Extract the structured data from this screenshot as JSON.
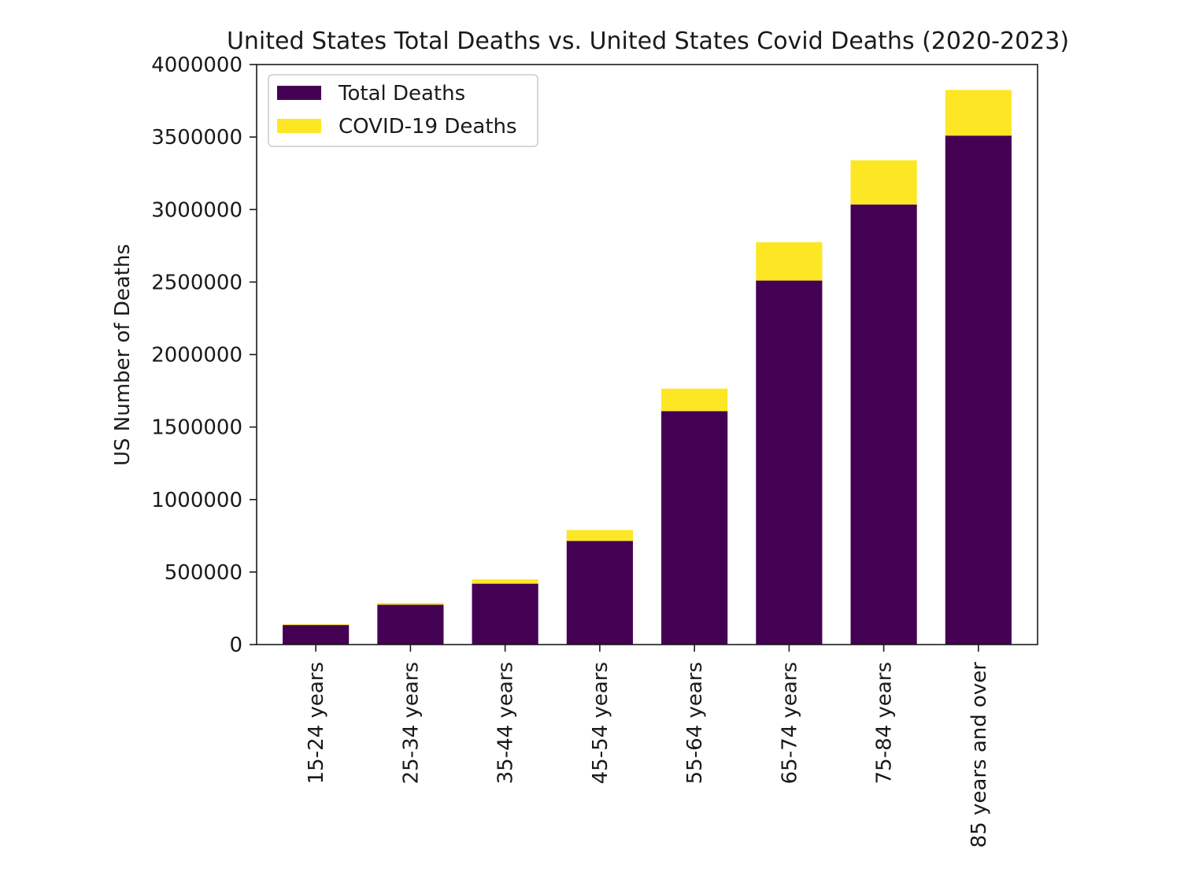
{
  "chart_data": {
    "type": "bar",
    "stacked": true,
    "title": "United States Total Deaths vs. United States Covid Deaths (2020-2023)",
    "xlabel": "",
    "ylabel": "US Number of Deaths",
    "ylim": [
      0,
      4000000
    ],
    "yticks": [
      0,
      500000,
      1000000,
      1500000,
      2000000,
      2500000,
      3000000,
      3500000,
      4000000
    ],
    "ytick_labels": [
      "0",
      "500000",
      "1000000",
      "1500000",
      "2000000",
      "2500000",
      "3000000",
      "3500000",
      "4000000"
    ],
    "categories": [
      "15-24 years",
      "25-34 years",
      "35-44 years",
      "45-54 years",
      "55-64 years",
      "65-74 years",
      "75-84 years",
      "85 years and over"
    ],
    "series": [
      {
        "name": "Total Deaths",
        "color": "#440154",
        "values": [
          135000,
          275000,
          420000,
          715000,
          1610000,
          2510000,
          3035000,
          3510000
        ]
      },
      {
        "name": "COVID-19 Deaths",
        "color": "#fde725",
        "values": [
          5000,
          12000,
          30000,
          75000,
          155000,
          265000,
          305000,
          315000
        ]
      }
    ],
    "grid": false,
    "legend_position": "top-left"
  }
}
